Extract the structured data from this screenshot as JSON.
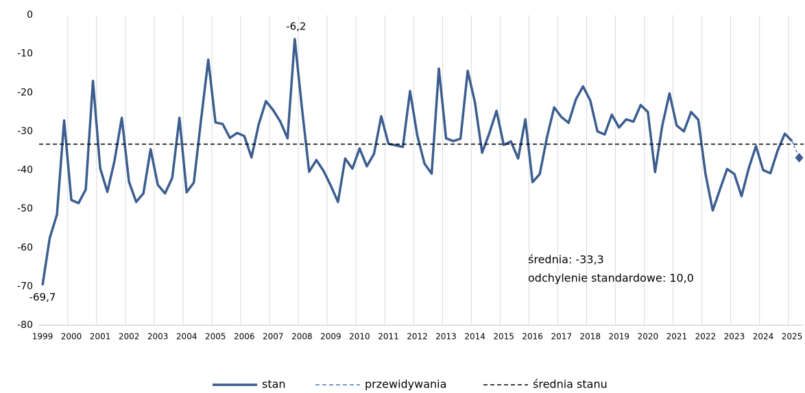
{
  "chart_data": {
    "type": "line",
    "categories": [
      "1999",
      null,
      null,
      null,
      "2000",
      null,
      null,
      null,
      "2001",
      null,
      null,
      null,
      "2002",
      null,
      null,
      null,
      "2003",
      null,
      null,
      null,
      "2004",
      null,
      null,
      null,
      "2005",
      null,
      null,
      null,
      "2006",
      null,
      null,
      null,
      "2007",
      null,
      null,
      null,
      "2008",
      null,
      null,
      null,
      "2009",
      null,
      null,
      null,
      "2010",
      null,
      null,
      null,
      "2011",
      null,
      null,
      null,
      "2012",
      null,
      null,
      null,
      "2013",
      null,
      null,
      null,
      "2014",
      null,
      null,
      null,
      "2015",
      null,
      null,
      null,
      "2016",
      null,
      null,
      null,
      "2017",
      null,
      null,
      null,
      "2018",
      null,
      null,
      null,
      "2019",
      null,
      null,
      null,
      "2020",
      null,
      null,
      null,
      "2021",
      null,
      null,
      null,
      "2022",
      null,
      null,
      null,
      "2023",
      null,
      null,
      null,
      "2024",
      null,
      null,
      null,
      "2025",
      null
    ],
    "series": [
      {
        "name": "stan",
        "color": "#3b5d8f",
        "values": [
          -69.7,
          -57.5,
          -51.5,
          -27.2,
          -47.7,
          -48.5,
          -45,
          -17,
          -39.5,
          -45.6,
          -37.5,
          -26.5,
          -43,
          -48.2,
          -46,
          -34.6,
          -43.8,
          -46,
          -42,
          -26.5,
          -45.7,
          -43.2,
          -27,
          -11.5,
          -27.7,
          -28.1,
          -31.7,
          -30.4,
          -31.2,
          -36.7,
          -28.2,
          -22.2,
          -24.5,
          -27.5,
          -31.8,
          -6.2,
          -24,
          -40.4,
          -37.4,
          -40.2,
          -44,
          -48.2,
          -37,
          -39.6,
          -34.4,
          -39,
          -35.8,
          -26.1,
          -33.2,
          -33.6,
          -34,
          -19.6,
          -31,
          -38.3,
          -40.9,
          -13.8,
          -31.8,
          -32.5,
          -31.9,
          -14.4,
          -22.5,
          -35.5,
          -30.5,
          -24.7,
          -33.5,
          -32.6,
          -37,
          -26.9,
          -43.1,
          -41,
          -31.5,
          -23.8,
          -26.3,
          -27.8,
          -21.8,
          -18.4,
          -22,
          -30,
          -30.8,
          -25.7,
          -29,
          -26.9,
          -27.5,
          -23.2,
          -25,
          -40.5,
          -28.5,
          -20.2,
          -28.5,
          -30,
          -25,
          -27,
          -41,
          -50.4,
          -45,
          -39.7,
          -41,
          -46.7,
          -39.5,
          -33.8,
          -40,
          -40.8,
          -35,
          -30.6,
          -32.5,
          null
        ],
        "value_labels": [
          "-69,7",
          null,
          null,
          null,
          null,
          null,
          null,
          null,
          null,
          null,
          null,
          null,
          null,
          null,
          null,
          null,
          null,
          null,
          null,
          null,
          null,
          null,
          null,
          null,
          null,
          null,
          null,
          null,
          null,
          null,
          null,
          null,
          null,
          null,
          null,
          "-6,2",
          null,
          null,
          null,
          null,
          null,
          null,
          null,
          null,
          null,
          null,
          null,
          null,
          null,
          null,
          null,
          null,
          null,
          null,
          null,
          null,
          null,
          null,
          null,
          null,
          null,
          null,
          null,
          null,
          null,
          null,
          null,
          null,
          null,
          null,
          null,
          null,
          null,
          null,
          null,
          null,
          null,
          null,
          null,
          null,
          null,
          null,
          null,
          null,
          null,
          null,
          null,
          null,
          null,
          null,
          null,
          null,
          null,
          null,
          null,
          null,
          null,
          null,
          null,
          null,
          null,
          null,
          null,
          null,
          null,
          null
        ]
      },
      {
        "name": "przewidywania",
        "color": "#4a78b5",
        "values": [
          null,
          null,
          null,
          null,
          null,
          null,
          null,
          null,
          null,
          null,
          null,
          null,
          null,
          null,
          null,
          null,
          null,
          null,
          null,
          null,
          null,
          null,
          null,
          null,
          null,
          null,
          null,
          null,
          null,
          null,
          null,
          null,
          null,
          null,
          null,
          null,
          null,
          null,
          null,
          null,
          null,
          null,
          null,
          null,
          null,
          null,
          null,
          null,
          null,
          null,
          null,
          null,
          null,
          null,
          null,
          null,
          null,
          null,
          null,
          null,
          null,
          null,
          null,
          null,
          null,
          null,
          null,
          null,
          null,
          null,
          null,
          null,
          null,
          null,
          null,
          null,
          null,
          null,
          null,
          null,
          null,
          null,
          null,
          null,
          null,
          null,
          null,
          null,
          null,
          null,
          null,
          null,
          null,
          null,
          null,
          null,
          null,
          null,
          null,
          null,
          null,
          null,
          null,
          null,
          -32.5,
          -36.8
        ]
      },
      {
        "name": "średnia stanu",
        "color": "#000000",
        "value": -33.3
      }
    ],
    "annotations": [
      "średnia: -33,3",
      "odchylenie standardowe: 10,0"
    ],
    "ylim": [
      -80,
      0
    ],
    "yticks": [
      0,
      -10,
      -20,
      -30,
      -40,
      -50,
      -60,
      -70,
      -80
    ],
    "grid": "x",
    "legend": "bottom"
  }
}
